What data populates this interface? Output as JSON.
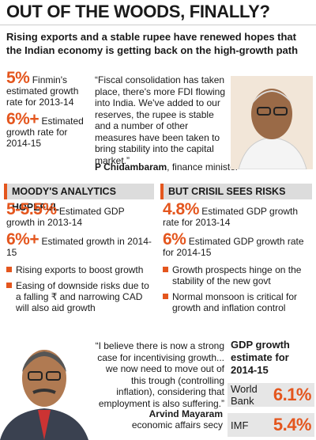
{
  "header": {
    "title": "OUT OF THE WOODS, FINALLY?",
    "subtitle": "Rising exports and a stable rupee have renewed hopes that the Indian economy is getting back on the high-growth path"
  },
  "finmin": {
    "stats": [
      {
        "value": "5%",
        "text": "Finmin's estimated growth rate for 2013-14"
      },
      {
        "value": "6%+",
        "text": "Estimated growth rate for 2014-15"
      }
    ],
    "quote": "“Fiscal consolidation has taken place, there's more FDI flowing into India. We've added to our reserves, the rupee is stable and a number of other measures have been taken to bring stability into the capital market.”",
    "speaker": "P Chidambaram",
    "role": ", finance minister"
  },
  "moodys": {
    "heading": "MOODY'S ANALYTICS HOPEFUL",
    "stats": [
      {
        "value": "5-5.5%",
        "text": "Estimated GDP growth in 2013-14"
      },
      {
        "value": "6%+",
        "text": "Estimated growth in 2014-15"
      }
    ],
    "bullets": [
      "Rising exports to boost growth",
      "Easing of downside risks due to a falling ₹ and narrowing CAD will also aid growth"
    ]
  },
  "crisil": {
    "heading": "BUT CRISIL SEES RISKS",
    "stats": [
      {
        "value": "4.8%",
        "text": "Estimated GDP growth rate for 2013-14"
      },
      {
        "value": "6%",
        "text": "Estimated GDP growth rate for 2014-15"
      }
    ],
    "bullets": [
      "Growth prospects hinge on the stability of the new govt",
      "Normal monsoon is critical for growth and inflation control"
    ]
  },
  "mayaram": {
    "quote": "“I believe there is now a strong case for incentivising growth... we now need to move out of this trough (controlling inflation), considering that employment is also suffering.”",
    "speaker": "Arvind Mayaram",
    "role": "economic affairs secy"
  },
  "gdp_estimate": {
    "title": "GDP growth estimate for 2014-15",
    "rows": [
      {
        "label": "World Bank",
        "value": "6.1%"
      },
      {
        "label": "IMF",
        "value": "5.4%"
      }
    ]
  }
}
